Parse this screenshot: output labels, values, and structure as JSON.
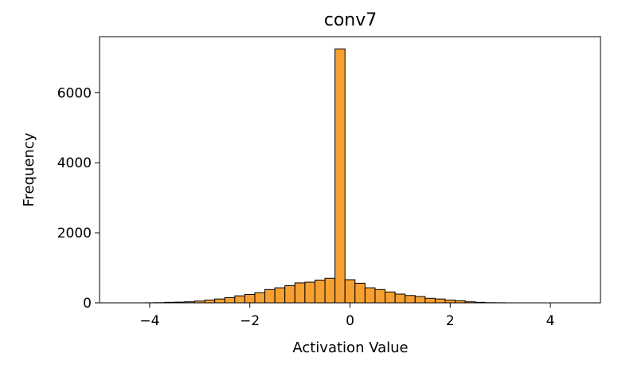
{
  "chart_data": {
    "type": "bar",
    "title": "conv7",
    "xlabel": "Activation Value",
    "ylabel": "Frequency",
    "xlim": [
      -5,
      5
    ],
    "ylim": [
      0,
      7600
    ],
    "xticks": [
      -4,
      -2,
      0,
      2,
      4
    ],
    "xtick_labels": [
      "−4",
      "−2",
      "0",
      "2",
      "4"
    ],
    "yticks": [
      0,
      2000,
      4000,
      6000
    ],
    "ytick_labels": [
      "0",
      "2000",
      "4000",
      "6000"
    ],
    "bar_color": "#f5a030",
    "edge_color": "#000000",
    "grid": false,
    "bins": [
      {
        "x0": -4.1,
        "x1": -3.9,
        "value": 2
      },
      {
        "x0": -3.9,
        "x1": -3.7,
        "value": 5
      },
      {
        "x0": -3.7,
        "x1": -3.5,
        "value": 15
      },
      {
        "x0": -3.5,
        "x1": -3.3,
        "value": 20
      },
      {
        "x0": -3.3,
        "x1": -3.1,
        "value": 30
      },
      {
        "x0": -3.1,
        "x1": -2.9,
        "value": 50
      },
      {
        "x0": -2.9,
        "x1": -2.7,
        "value": 80
      },
      {
        "x0": -2.7,
        "x1": -2.5,
        "value": 110
      },
      {
        "x0": -2.5,
        "x1": -2.3,
        "value": 150
      },
      {
        "x0": -2.3,
        "x1": -2.1,
        "value": 200
      },
      {
        "x0": -2.1,
        "x1": -1.9,
        "value": 240
      },
      {
        "x0": -1.9,
        "x1": -1.7,
        "value": 290
      },
      {
        "x0": -1.7,
        "x1": -1.5,
        "value": 380
      },
      {
        "x0": -1.5,
        "x1": -1.3,
        "value": 430
      },
      {
        "x0": -1.3,
        "x1": -1.1,
        "value": 490
      },
      {
        "x0": -1.1,
        "x1": -0.9,
        "value": 570
      },
      {
        "x0": -0.9,
        "x1": -0.7,
        "value": 590
      },
      {
        "x0": -0.7,
        "x1": -0.5,
        "value": 650
      },
      {
        "x0": -0.5,
        "x1": -0.3,
        "value": 700
      },
      {
        "x0": -0.3,
        "x1": -0.1,
        "value": 7250
      },
      {
        "x0": -0.1,
        "x1": 0.1,
        "value": 660
      },
      {
        "x0": 0.1,
        "x1": 0.3,
        "value": 560
      },
      {
        "x0": 0.3,
        "x1": 0.5,
        "value": 430
      },
      {
        "x0": 0.5,
        "x1": 0.7,
        "value": 380
      },
      {
        "x0": 0.7,
        "x1": 0.9,
        "value": 310
      },
      {
        "x0": 0.9,
        "x1": 1.1,
        "value": 250
      },
      {
        "x0": 1.1,
        "x1": 1.3,
        "value": 210
      },
      {
        "x0": 1.3,
        "x1": 1.5,
        "value": 180
      },
      {
        "x0": 1.5,
        "x1": 1.7,
        "value": 130
      },
      {
        "x0": 1.7,
        "x1": 1.9,
        "value": 110
      },
      {
        "x0": 1.9,
        "x1": 2.1,
        "value": 80
      },
      {
        "x0": 2.1,
        "x1": 2.3,
        "value": 60
      },
      {
        "x0": 2.3,
        "x1": 2.5,
        "value": 30
      },
      {
        "x0": 2.5,
        "x1": 2.7,
        "value": 15
      },
      {
        "x0": 2.7,
        "x1": 2.9,
        "value": 5
      },
      {
        "x0": 2.9,
        "x1": 3.1,
        "value": 3
      }
    ]
  }
}
